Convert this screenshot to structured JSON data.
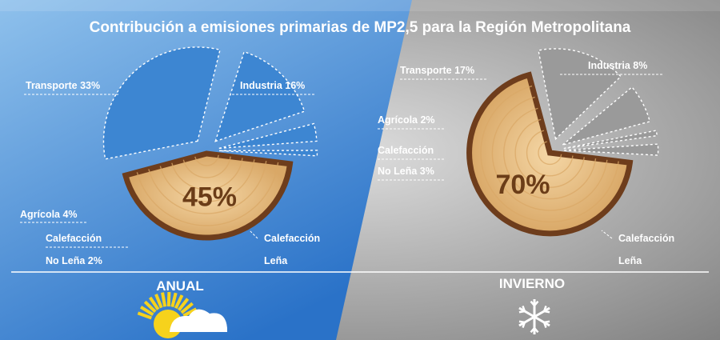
{
  "title": "Contribución a emisiones primarias de MP2,5 para la Región Metropolitana",
  "colors": {
    "left_bg_light": "#8fc1ec",
    "left_bg_dark": "#2a72c8",
    "right_bg_light": "#dcdcdc",
    "right_bg_dark": "#7a7a7a",
    "blue_slice": "#3d86d2",
    "gray_slice": "#9a9a9a",
    "wood_light": "#f5d7a6",
    "wood_ring": "#d9a867",
    "bark": "#6e3d1c",
    "sun": "#f6d21c"
  },
  "icons": {
    "anual": "sun-cloud-icon",
    "invierno": "snowflake-icon"
  },
  "chart_data": [
    {
      "type": "pie",
      "title": "ANUAL",
      "categories": [
        "Calefacción Leña",
        "Transporte",
        "Industria",
        "Agrícola",
        "Calefacción No Leña"
      ],
      "values": [
        45,
        33,
        16,
        4,
        2
      ],
      "labels": [
        "Calefacción",
        "Leña",
        "Transporte 33%",
        "Industria 16%",
        "Agrícola 4%",
        "Calefacción",
        "No Leña 2%"
      ],
      "center_label": "45%"
    },
    {
      "type": "pie",
      "title": "INVIERNO",
      "categories": [
        "Calefacción Leña",
        "Transporte",
        "Industria",
        "Agrícola",
        "Calefacción No Leña"
      ],
      "values": [
        70,
        17,
        8,
        2,
        3
      ],
      "labels": [
        "Calefacción",
        "Leña",
        "Transporte 17%",
        "Industria 8%",
        "Agrícola 2%",
        "Calefacción",
        "No Leña 3%"
      ],
      "center_label": "70%"
    }
  ]
}
